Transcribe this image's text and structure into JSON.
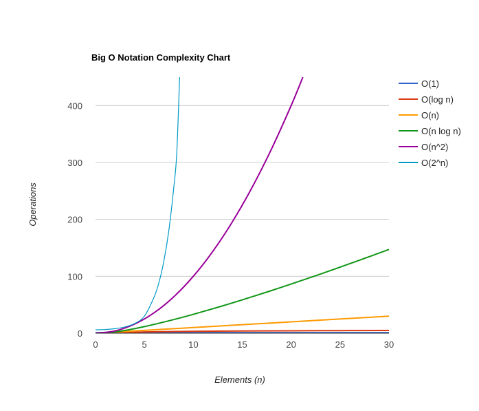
{
  "chart_data": {
    "type": "line",
    "title": "Big O Notation Complexity Chart",
    "xlabel": "Elements (n)",
    "ylabel": "Operations",
    "xlim": [
      0,
      30
    ],
    "ylim": [
      0,
      450
    ],
    "x_ticks": [
      "0",
      "5",
      "10",
      "15",
      "20",
      "25",
      "30"
    ],
    "y_ticks": [
      "0",
      "100",
      "200",
      "300",
      "400"
    ],
    "grid": true,
    "legend_position": "right",
    "series": [
      {
        "name": "O(1)",
        "color": "#3366cc",
        "x": [
          0,
          30
        ],
        "y": [
          1,
          1
        ]
      },
      {
        "name": "O(log n)",
        "color": "#dc3912",
        "x": [
          1,
          5,
          10,
          15,
          20,
          25,
          30
        ],
        "y": [
          0,
          2.3,
          3.3,
          3.9,
          4.3,
          4.6,
          4.9
        ]
      },
      {
        "name": "O(n)",
        "color": "#ff9900",
        "x": [
          0,
          30
        ],
        "y": [
          0,
          30
        ]
      },
      {
        "name": "O(n log n)",
        "color": "#109618",
        "x": [
          1,
          3,
          5,
          8,
          10,
          13,
          15,
          18,
          20,
          23,
          25,
          28,
          30
        ],
        "y": [
          0,
          4.8,
          11.6,
          24,
          33.2,
          48.1,
          58.6,
          75,
          86.4,
          104,
          116.1,
          134.6,
          147.2
        ]
      },
      {
        "name": "O(n^2)",
        "color": "#990099",
        "x": [
          0,
          2,
          4,
          6,
          8,
          10,
          12,
          14,
          16,
          18,
          20,
          21.2
        ],
        "y": [
          0,
          4,
          16,
          36,
          64,
          100,
          144,
          196,
          256,
          324,
          400,
          450
        ]
      },
      {
        "name": "O(2^n)",
        "color": "#0099c6",
        "x": [
          0,
          1,
          2,
          3,
          4,
          5,
          6,
          6.5,
          7,
          7.5,
          8,
          8.3,
          8.6
        ],
        "y": [
          6,
          6.5,
          8,
          11,
          17,
          30,
          64,
          90,
          128,
          181,
          256,
          315,
          450
        ]
      }
    ]
  }
}
